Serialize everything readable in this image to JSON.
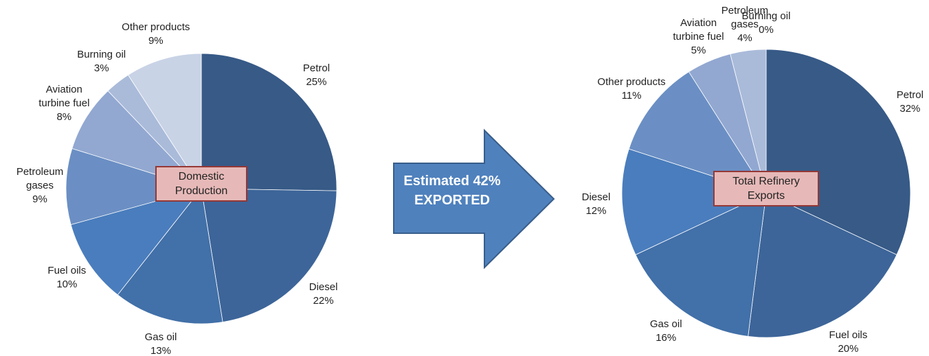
{
  "annotation": "Estimated 42% EXPORTED",
  "chart_data": [
    {
      "type": "pie",
      "title": "Domestic Production",
      "categories": [
        "Petrol",
        "Diesel",
        "Gas oil",
        "Fuel oils",
        "Petroleum gases",
        "Aviation turbine fuel",
        "Burning oil",
        "Other products"
      ],
      "values": [
        25,
        22,
        13,
        10,
        9,
        8,
        3,
        9
      ],
      "value_labels": [
        "25%",
        "22%",
        "13%",
        "10%",
        "9%",
        "8%",
        "3%",
        "9%"
      ],
      "colors": [
        "#375a87",
        "#3d6599",
        "#4270a8",
        "#4a7dbd",
        "#6b8fc4",
        "#92a8d1",
        "#aabbda",
        "#c9d3e6"
      ]
    },
    {
      "type": "pie",
      "title": "Total Refinery Exports",
      "categories": [
        "Petrol",
        "Fuel oils",
        "Gas oil",
        "Diesel",
        "Other products",
        "Aviation turbine fuel",
        "Petroleum gases",
        "Burning oil"
      ],
      "values": [
        32,
        20,
        16,
        12,
        11,
        5,
        4,
        0
      ],
      "value_labels": [
        "32%",
        "20%",
        "16%",
        "12%",
        "11%",
        "5%",
        "4%",
        "0%"
      ],
      "colors": [
        "#375a87",
        "#3d6599",
        "#4270a8",
        "#4a7dbd",
        "#6b8fc4",
        "#92a8d1",
        "#aabbda",
        "#c9d3e6"
      ]
    }
  ]
}
